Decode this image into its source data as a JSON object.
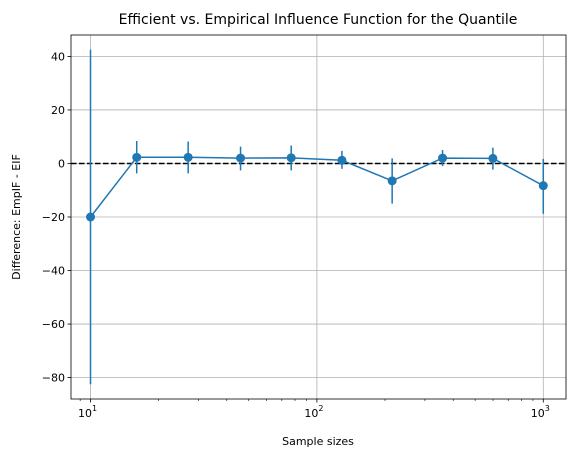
{
  "chart_data": {
    "type": "line",
    "title": "Efficient vs. Empirical Influence Function for the Quantile",
    "xlabel": "Sample sizes",
    "ylabel": "Difference: EmpIF - EIF",
    "x_scale": "log",
    "xlim": [
      8.2,
      1260
    ],
    "ylim": [
      -88,
      48
    ],
    "grid": true,
    "x_ticks": [
      {
        "value": 10,
        "base": "10",
        "exp": "1"
      },
      {
        "value": 100,
        "base": "10",
        "exp": "2"
      },
      {
        "value": 1000,
        "base": "10",
        "exp": "3"
      }
    ],
    "y_ticks": [
      {
        "value": 40,
        "label": "40"
      },
      {
        "value": 20,
        "label": "20"
      },
      {
        "value": 0,
        "label": "0"
      },
      {
        "value": -20,
        "label": "−20"
      },
      {
        "value": -40,
        "label": "−40"
      },
      {
        "value": -60,
        "label": "−60"
      },
      {
        "value": -80,
        "label": "−80"
      }
    ],
    "reference_line": {
      "y": 0,
      "style": "dashed",
      "color": "#000000"
    },
    "series": [
      {
        "color": "#1f77b4",
        "x": [
          10,
          16,
          27,
          46,
          77,
          129,
          215,
          359,
          599,
          1000
        ],
        "y": [
          -20.0,
          2.3,
          2.3,
          2.0,
          2.1,
          1.2,
          -6.5,
          2.0,
          1.9,
          -8.3
        ],
        "err_low": [
          -82.5,
          -3.7,
          -3.7,
          -2.6,
          -2.6,
          -2.0,
          -15.0,
          -1.0,
          -2.3,
          -18.8
        ],
        "err_high": [
          42.5,
          8.4,
          8.2,
          6.3,
          6.7,
          4.7,
          1.9,
          5.0,
          5.9,
          1.7
        ]
      }
    ]
  }
}
